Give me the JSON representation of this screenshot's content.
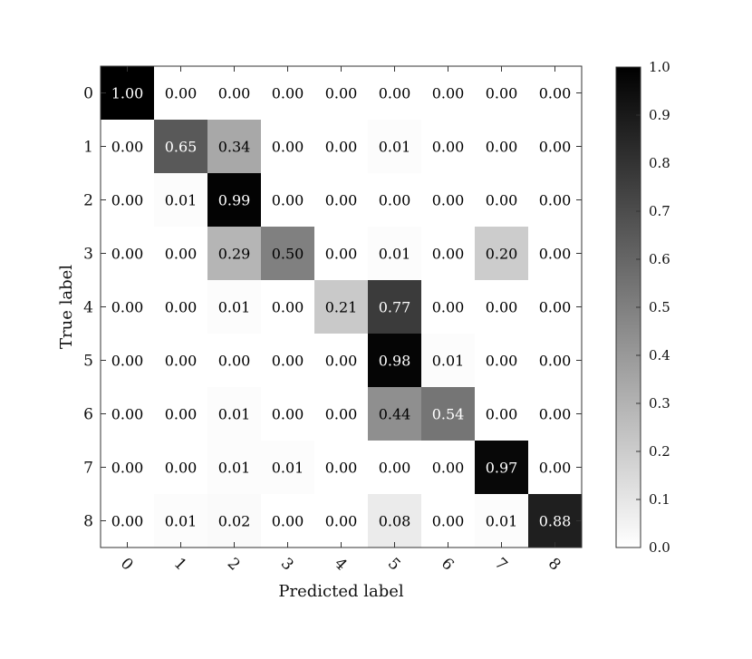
{
  "chart_data": {
    "type": "heatmap",
    "title": "",
    "xlabel": "Predicted label",
    "ylabel": "True label",
    "x_categories": [
      "0",
      "1",
      "2",
      "3",
      "4",
      "5",
      "6",
      "7",
      "8"
    ],
    "y_categories": [
      "0",
      "1",
      "2",
      "3",
      "4",
      "5",
      "6",
      "7",
      "8"
    ],
    "values": [
      [
        1.0,
        0.0,
        0.0,
        0.0,
        0.0,
        0.0,
        0.0,
        0.0,
        0.0
      ],
      [
        0.0,
        0.65,
        0.34,
        0.0,
        0.0,
        0.01,
        0.0,
        0.0,
        0.0
      ],
      [
        0.0,
        0.01,
        0.99,
        0.0,
        0.0,
        0.0,
        0.0,
        0.0,
        0.0
      ],
      [
        0.0,
        0.0,
        0.29,
        0.5,
        0.0,
        0.01,
        0.0,
        0.2,
        0.0
      ],
      [
        0.0,
        0.0,
        0.01,
        0.0,
        0.21,
        0.77,
        0.0,
        0.0,
        0.0
      ],
      [
        0.0,
        0.0,
        0.0,
        0.0,
        0.0,
        0.98,
        0.01,
        0.0,
        0.0
      ],
      [
        0.0,
        0.0,
        0.01,
        0.0,
        0.0,
        0.44,
        0.54,
        0.0,
        0.0
      ],
      [
        0.0,
        0.0,
        0.01,
        0.01,
        0.0,
        0.0,
        0.0,
        0.97,
        0.0
      ],
      [
        0.0,
        0.01,
        0.02,
        0.0,
        0.0,
        0.08,
        0.0,
        0.01,
        0.88
      ]
    ],
    "colormap": "greys",
    "color_range": [
      0.0,
      1.0
    ],
    "colorbar_ticks": [
      0.0,
      0.1,
      0.2,
      0.3,
      0.4,
      0.5,
      0.6,
      0.7,
      0.8,
      0.9,
      1.0
    ],
    "x_tick_rotation": "45 degrees",
    "legend": "colorbar right"
  }
}
